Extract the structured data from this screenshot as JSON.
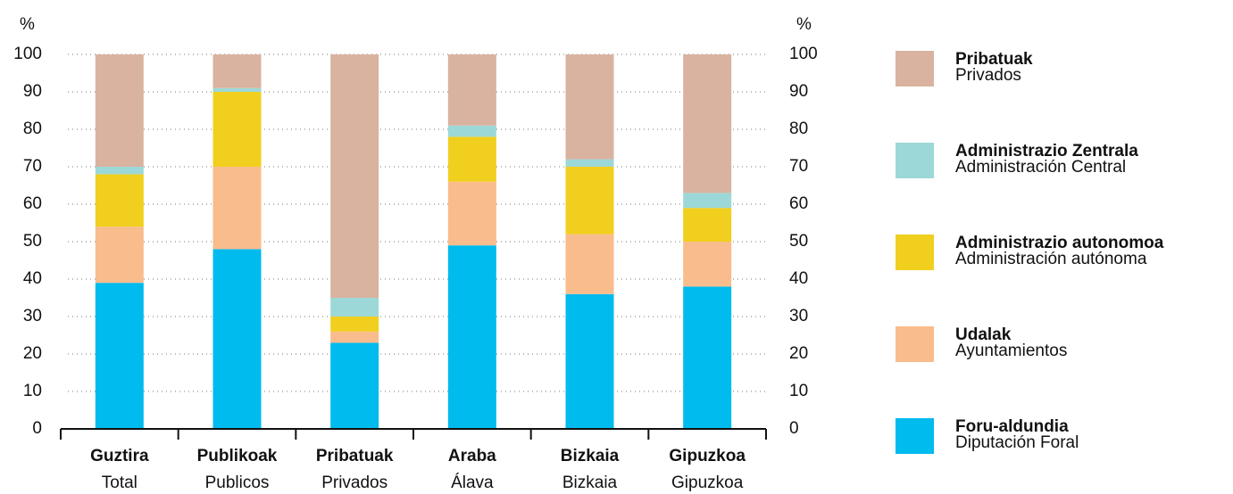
{
  "chart_data": {
    "type": "stacked_bar",
    "y_label": "%",
    "categories": [
      "Guztira",
      "Publikoak",
      "Pribatuak",
      "Araba",
      "Bizkaia",
      "Gipuzkoa"
    ],
    "categories_es": [
      "Total",
      "Publicos",
      "Privados",
      "Álava",
      "Bizkaia",
      "Gipuzkoa"
    ],
    "series": [
      {
        "name": "Foru-aldundia",
        "name_es": "Diputación Foral",
        "color": "#00bbee",
        "values": [
          39,
          48,
          23,
          49,
          36,
          38
        ]
      },
      {
        "name": "Udalak",
        "name_es": "Ayuntamientos",
        "color": "#f9bc8c",
        "values": [
          15,
          22,
          3,
          17,
          16,
          12
        ]
      },
      {
        "name": "Administrazio autonomoa",
        "name_es": "Administración autónoma",
        "color": "#f0cf1e",
        "values": [
          14,
          20,
          4,
          12,
          18,
          9
        ]
      },
      {
        "name": "Administrazio Zentrala",
        "name_es": "Administración Central",
        "color": "#9dd8d8",
        "values": [
          2,
          1,
          5,
          3,
          2,
          4
        ]
      },
      {
        "name": "Pribatuak",
        "name_es": "Privados",
        "color": "#d9b3a0",
        "values": [
          30,
          9,
          65,
          19,
          28,
          37
        ]
      }
    ],
    "ylim": [
      0,
      100
    ],
    "yticks": [
      0,
      10,
      20,
      30,
      40,
      50,
      60,
      70,
      80,
      90,
      100
    ],
    "grid": true
  }
}
